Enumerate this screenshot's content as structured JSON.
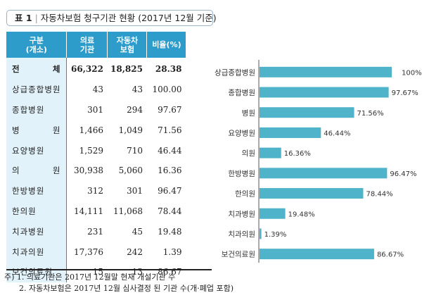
{
  "title": {
    "label": "표 1",
    "separator": "|",
    "text": "자동차보험 청구기관 현황 (2017년 12월 기준)"
  },
  "table": {
    "headers": [
      [
        "구분",
        "(개소)"
      ],
      [
        "의료",
        "기관"
      ],
      [
        "자동차",
        "보험"
      ],
      [
        "비율(%)"
      ]
    ],
    "rows": [
      {
        "category": "전 체",
        "medical": "66,322",
        "auto": "18,825",
        "ratio": "28.38",
        "total": true
      },
      {
        "category": "상급종합병원",
        "medical": "43",
        "auto": "43",
        "ratio": "100.00"
      },
      {
        "category": "종합병원",
        "medical": "301",
        "auto": "294",
        "ratio": "97.67"
      },
      {
        "category": "병 원",
        "medical": "1,466",
        "auto": "1,049",
        "ratio": "71.56"
      },
      {
        "category": "요양병원",
        "medical": "1,529",
        "auto": "710",
        "ratio": "46.44"
      },
      {
        "category": "의 원",
        "medical": "30,938",
        "auto": "5,060",
        "ratio": "16.36"
      },
      {
        "category": "한방병원",
        "medical": "312",
        "auto": "301",
        "ratio": "96.47"
      },
      {
        "category": "한의원",
        "medical": "14,111",
        "auto": "11,068",
        "ratio": "78.44"
      },
      {
        "category": "치과병원",
        "medical": "231",
        "auto": "45",
        "ratio": "19.48"
      },
      {
        "category": "치과의원",
        "medical": "17,376",
        "auto": "242",
        "ratio": "1.39"
      },
      {
        "category": "보건의료원",
        "medical": "15",
        "auto": "13",
        "ratio": "86.67"
      }
    ]
  },
  "notes": {
    "prefix": "주)",
    "items": [
      "1. 의료기관은 2017년 12월말 현재 개설기관 수",
      "2. 자동차보험은 2017년 12월 심사결정 된 기관 수(개·폐업 포함)"
    ]
  },
  "colors": {
    "header": "#2e9ccb",
    "category_bg": "#e2f2fa",
    "bar": "#4fb4c9"
  },
  "chart_data": {
    "type": "bar",
    "orientation": "horizontal",
    "title": "",
    "xlabel": "",
    "ylabel": "",
    "xlim": [
      0,
      100
    ],
    "grid": false,
    "categories": [
      "상급종합병원",
      "종합병원",
      "병원",
      "요양병원",
      "의원",
      "한방병원",
      "한의원",
      "치과병원",
      "치과의원",
      "보건의료원"
    ],
    "values": [
      100,
      97.67,
      71.56,
      46.44,
      16.36,
      96.47,
      78.44,
      19.48,
      1.39,
      86.67
    ],
    "data_labels": [
      "100%",
      "97.67%",
      "71.56%",
      "46.44%",
      "16.36%",
      "96.47%",
      "78.44%",
      "19.48%",
      "1.39%",
      "86.67%"
    ]
  }
}
